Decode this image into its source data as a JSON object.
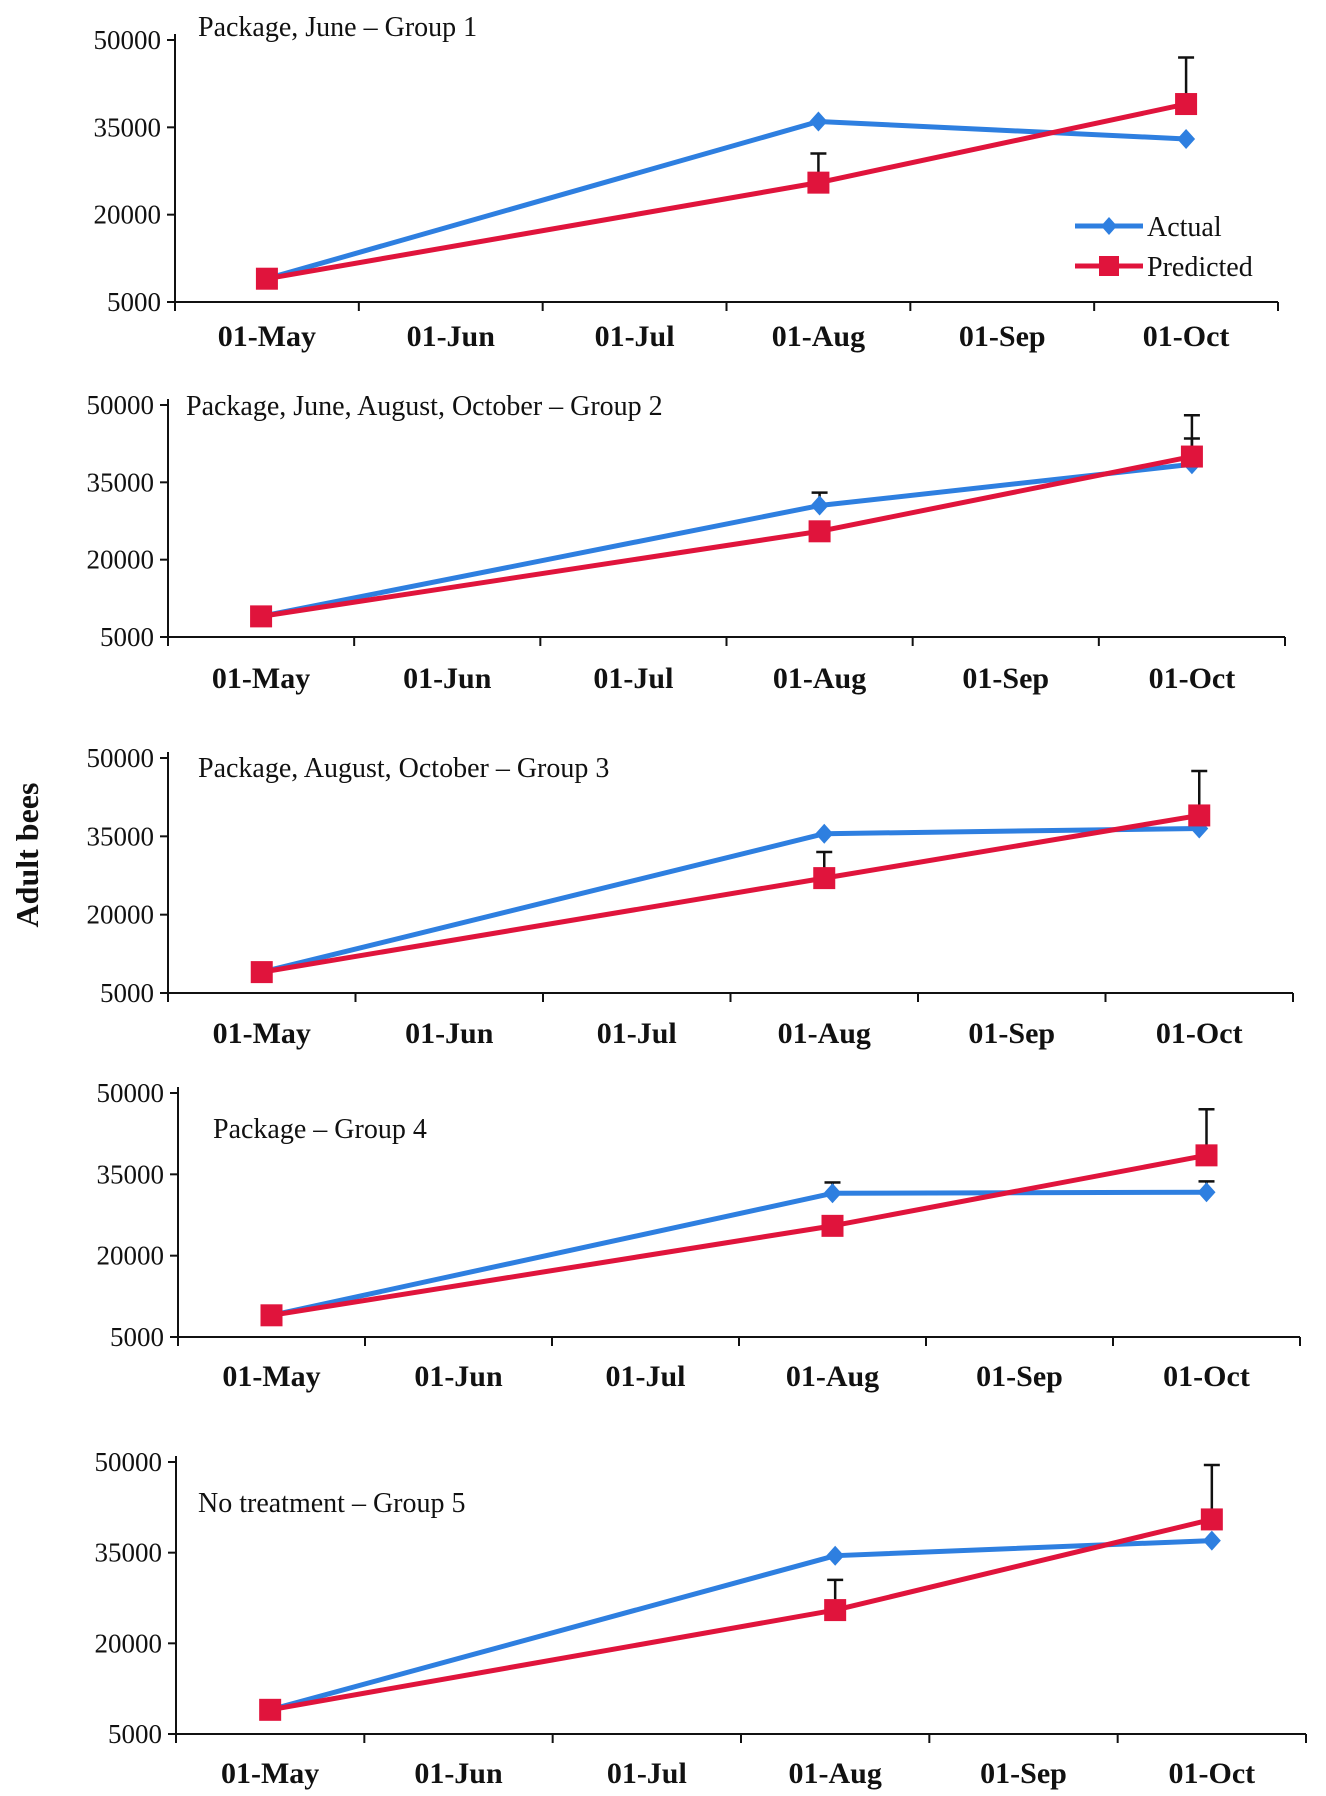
{
  "ylabel": "Adult bees",
  "colors": {
    "actual": "#2e7fe0",
    "predicted": "#e0143c",
    "axis": "#111111"
  },
  "legend": [
    "Actual",
    "Predicted"
  ],
  "chart_data": [
    {
      "type": "line",
      "title": "Package, June  – Group 1",
      "categories": [
        "01-May",
        "01-Jun",
        "01-Jul",
        "01-Aug",
        "01-Sep",
        "01-Oct"
      ],
      "yticks": [
        "50000",
        "35000",
        "20000",
        "5000"
      ],
      "ylim": [
        5000,
        50000
      ],
      "legend_position": "right",
      "series": [
        {
          "name": "Actual",
          "marker": "diamond",
          "points": [
            [
              "01-May",
              9000
            ],
            [
              "01-Aug",
              36000
            ],
            [
              "01-Oct",
              33000
            ]
          ]
        },
        {
          "name": "Predicted",
          "marker": "square",
          "points": [
            [
              "01-May",
              9000
            ],
            [
              "01-Aug",
              25500
            ],
            [
              "01-Oct",
              39000
            ]
          ],
          "error_up": [
            0,
            5000,
            8000
          ]
        }
      ]
    },
    {
      "type": "line",
      "title": "Package, June, August, October  – Group 2",
      "categories": [
        "01-May",
        "01-Jun",
        "01-Jul",
        "01-Aug",
        "01-Sep",
        "01-Oct"
      ],
      "yticks": [
        "50000",
        "35000",
        "20000",
        "5000"
      ],
      "ylim": [
        5000,
        50000
      ],
      "series": [
        {
          "name": "Actual",
          "marker": "diamond",
          "points": [
            [
              "01-May",
              9000
            ],
            [
              "01-Aug",
              30500
            ],
            [
              "01-Oct",
              38500
            ]
          ],
          "error_up": [
            0,
            2500,
            5000
          ]
        },
        {
          "name": "Predicted",
          "marker": "square",
          "points": [
            [
              "01-May",
              9000
            ],
            [
              "01-Aug",
              25500
            ],
            [
              "01-Oct",
              40000
            ]
          ],
          "error_up": [
            0,
            0,
            8000
          ]
        }
      ]
    },
    {
      "type": "line",
      "title": "Package, August, October  – Group 3",
      "categories": [
        "01-May",
        "01-Jun",
        "01-Jul",
        "01-Aug",
        "01-Sep",
        "01-Oct"
      ],
      "yticks": [
        "50000",
        "35000",
        "20000",
        "5000"
      ],
      "ylim": [
        5000,
        50000
      ],
      "series": [
        {
          "name": "Actual",
          "marker": "diamond",
          "points": [
            [
              "01-May",
              9000
            ],
            [
              "01-Aug",
              35500
            ],
            [
              "01-Oct",
              36500
            ]
          ]
        },
        {
          "name": "Predicted",
          "marker": "square",
          "points": [
            [
              "01-May",
              9000
            ],
            [
              "01-Aug",
              27000
            ],
            [
              "01-Oct",
              39000
            ]
          ],
          "error_up": [
            0,
            5000,
            8500
          ]
        }
      ]
    },
    {
      "type": "line",
      "title": "Package  – Group 4",
      "categories": [
        "01-May",
        "01-Jun",
        "01-Jul",
        "01-Aug",
        "01-Sep",
        "01-Oct"
      ],
      "yticks": [
        "50000",
        "35000",
        "20000",
        "5000"
      ],
      "ylim": [
        5000,
        50000
      ],
      "series": [
        {
          "name": "Actual",
          "marker": "diamond",
          "points": [
            [
              "01-May",
              9000
            ],
            [
              "01-Aug",
              31500
            ],
            [
              "01-Oct",
              31700
            ]
          ],
          "error_up": [
            0,
            2000,
            2000
          ]
        },
        {
          "name": "Predicted",
          "marker": "square",
          "points": [
            [
              "01-May",
              9000
            ],
            [
              "01-Aug",
              25500
            ],
            [
              "01-Oct",
              38500
            ]
          ],
          "error_up": [
            0,
            0,
            8500
          ]
        }
      ]
    },
    {
      "type": "line",
      "title": "No treatment   – Group 5",
      "categories": [
        "01-May",
        "01-Jun",
        "01-Jul",
        "01-Aug",
        "01-Sep",
        "01-Oct"
      ],
      "yticks": [
        "50000",
        "35000",
        "20000",
        "5000"
      ],
      "ylim": [
        5000,
        50000
      ],
      "series": [
        {
          "name": "Actual",
          "marker": "diamond",
          "points": [
            [
              "01-May",
              9000
            ],
            [
              "01-Aug",
              34500
            ],
            [
              "01-Oct",
              37000
            ]
          ]
        },
        {
          "name": "Predicted",
          "marker": "square",
          "points": [
            [
              "01-May",
              9000
            ],
            [
              "01-Aug",
              25500
            ],
            [
              "01-Oct",
              40500
            ]
          ],
          "error_up": [
            0,
            5000,
            9000
          ]
        }
      ]
    }
  ]
}
